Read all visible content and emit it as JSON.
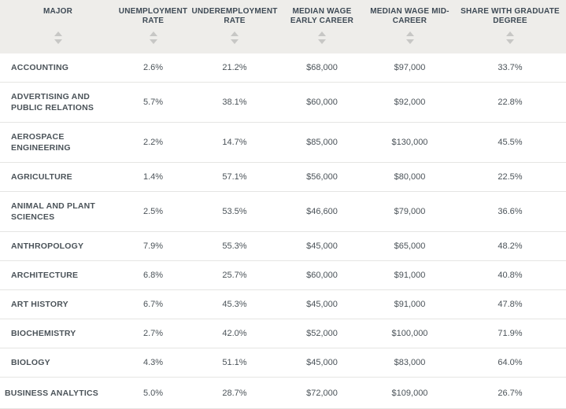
{
  "colors": {
    "header_bg": "#eeedea",
    "header_text": "#3e4a55",
    "arrow_color": "#c7c7c5",
    "cell_text": "#4b5359",
    "divider": "#e5e5e3",
    "row_bg": "#ffffff"
  },
  "icons": {
    "sort_ascending": "up-triangle",
    "sort_descending": "down-triangle"
  },
  "table": {
    "columns": [
      {
        "id": "major",
        "label": "MAJOR"
      },
      {
        "id": "unemployment-rate",
        "label": "UNEMPLOYMENT RATE"
      },
      {
        "id": "underemployment-rate",
        "label": "UNDEREMPLOYMENT RATE"
      },
      {
        "id": "median-wage-early-career",
        "label": "MEDIAN WAGE EARLY CAREER"
      },
      {
        "id": "median-wage-mid-career",
        "label": "MEDIAN WAGE MID-CAREER"
      },
      {
        "id": "share-with-graduate-degree",
        "label": "SHARE WITH GRADUATE DEGREE"
      }
    ],
    "rows": [
      [
        "ACCOUNTING",
        "2.6%",
        "21.2%",
        "$68,000",
        "$97,000",
        "33.7%"
      ],
      [
        "ADVERTISING AND PUBLIC RELATIONS",
        "5.7%",
        "38.1%",
        "$60,000",
        "$92,000",
        "22.8%"
      ],
      [
        "AEROSPACE ENGINEERING",
        "2.2%",
        "14.7%",
        "$85,000",
        "$130,000",
        "45.5%"
      ],
      [
        "AGRICULTURE",
        "1.4%",
        "57.1%",
        "$56,000",
        "$80,000",
        "22.5%"
      ],
      [
        "ANIMAL AND PLANT SCIENCES",
        "2.5%",
        "53.5%",
        "$46,600",
        "$79,000",
        "36.6%"
      ],
      [
        "ANTHROPOLOGY",
        "7.9%",
        "55.3%",
        "$45,000",
        "$65,000",
        "48.2%"
      ],
      [
        "ARCHITECTURE",
        "6.8%",
        "25.7%",
        "$60,000",
        "$91,000",
        "40.8%"
      ],
      [
        "ART HISTORY",
        "6.7%",
        "45.3%",
        "$45,000",
        "$91,000",
        "47.8%"
      ],
      [
        "BIOCHEMISTRY",
        "2.7%",
        "42.0%",
        "$52,000",
        "$100,000",
        "71.9%"
      ],
      [
        "BIOLOGY",
        "4.3%",
        "51.1%",
        "$45,000",
        "$83,000",
        "64.0%"
      ],
      [
        "BUSINESS ANALYTICS",
        "5.0%",
        "28.7%",
        "$72,000",
        "$109,000",
        "26.7%"
      ]
    ]
  }
}
